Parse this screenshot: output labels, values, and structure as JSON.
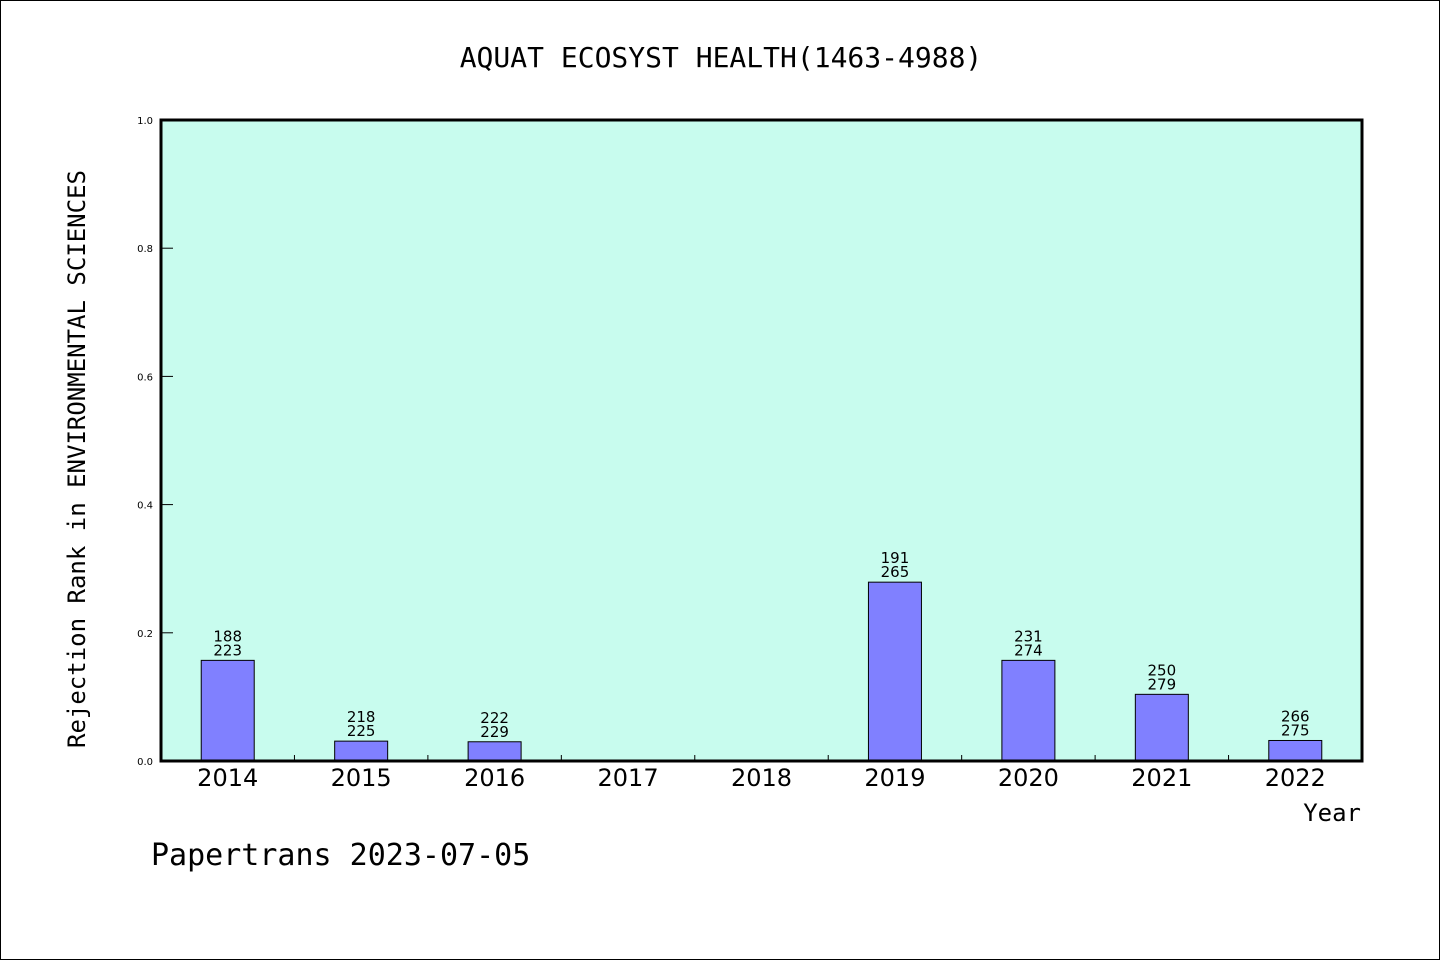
{
  "chart_data": {
    "type": "bar",
    "title": "AQUAT ECOSYST HEALTH(1463-4988)",
    "xlabel": "Year",
    "ylabel": "Rejection Rank in ENVIRONMENTAL SCIENCES",
    "ylim": [
      0,
      1.0
    ],
    "yticks": [
      "0.0",
      "0.2",
      "0.4",
      "0.6",
      "0.8",
      "1.0"
    ],
    "categories": [
      "2014",
      "2015",
      "2016",
      "2017",
      "2018",
      "2019",
      "2020",
      "2021",
      "2022"
    ],
    "values": [
      0.157,
      0.031,
      0.03,
      0,
      0,
      0.279,
      0.157,
      0.104,
      0.032
    ],
    "bar_labels": [
      [
        "188",
        "223"
      ],
      [
        "218",
        "225"
      ],
      [
        "222",
        "229"
      ],
      null,
      null,
      [
        "191",
        "265"
      ],
      [
        "231",
        "274"
      ],
      [
        "250",
        "279"
      ],
      [
        "266",
        "275"
      ]
    ],
    "grid": false,
    "colors": {
      "plot_background": "#c8fcee",
      "bar_fill": "#8080ff",
      "bar_stroke": "#000000"
    }
  },
  "footer": "Papertrans 2023-07-05"
}
